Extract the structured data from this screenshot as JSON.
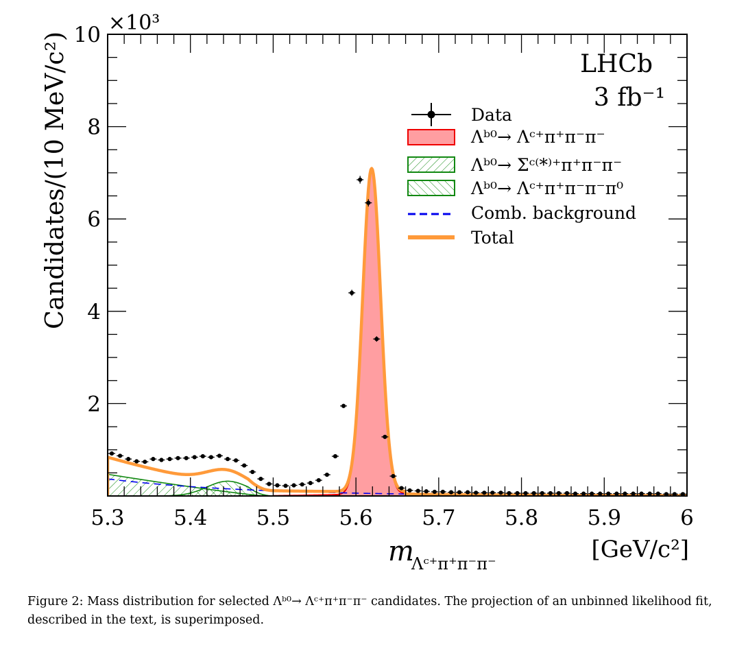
{
  "chart_data": {
    "type": "histogram-fit",
    "experiment_label": "LHCb",
    "lumi_label": "3 fb⁻¹",
    "xlabel": "m",
    "xlabel_sub": "Λᶜ⁺π⁺π⁻π⁻",
    "xunit": "[GeV/c²]",
    "ylabel": "Candidates/(10 MeV/c²)",
    "y_multiplier": "×10³",
    "xlim": [
      5.3,
      6.0
    ],
    "ylim": [
      0,
      10
    ],
    "x_ticks": [
      "5.3",
      "5.4",
      "5.5",
      "5.6",
      "5.7",
      "5.8",
      "5.9",
      "6"
    ],
    "y_ticks": [
      "2",
      "4",
      "6",
      "8",
      "10"
    ],
    "legend": {
      "data": "Data",
      "signal": "Λᵇ⁰→ Λᶜ⁺π⁺π⁻π⁻",
      "sigma_c": "Λᵇ⁰→ Σᶜ⁽*⁾⁺π⁺π⁻π⁻",
      "pi0": "Λᵇ⁰→ Λᶜ⁺π⁺π⁻π⁻π⁰",
      "comb": "Comb. background",
      "total": "Total"
    },
    "data_points": {
      "x": [
        5.305,
        5.315,
        5.325,
        5.335,
        5.345,
        5.355,
        5.365,
        5.375,
        5.385,
        5.395,
        5.405,
        5.415,
        5.425,
        5.435,
        5.445,
        5.455,
        5.465,
        5.475,
        5.485,
        5.495,
        5.505,
        5.515,
        5.525,
        5.535,
        5.545,
        5.555,
        5.565,
        5.575,
        5.585,
        5.595,
        5.605,
        5.615,
        5.625,
        5.635,
        5.645,
        5.655,
        5.665,
        5.675,
        5.685,
        5.695,
        5.705,
        5.715,
        5.725,
        5.735,
        5.745,
        5.755,
        5.765,
        5.775,
        5.785,
        5.795,
        5.805,
        5.815,
        5.825,
        5.835,
        5.845,
        5.855,
        5.865,
        5.875,
        5.885,
        5.895,
        5.905,
        5.915,
        5.925,
        5.935,
        5.945,
        5.955,
        5.965,
        5.975,
        5.985,
        5.995
      ],
      "y": [
        0.92,
        0.87,
        0.8,
        0.75,
        0.74,
        0.8,
        0.78,
        0.8,
        0.82,
        0.82,
        0.84,
        0.86,
        0.84,
        0.87,
        0.8,
        0.77,
        0.66,
        0.52,
        0.37,
        0.26,
        0.23,
        0.22,
        0.23,
        0.25,
        0.28,
        0.34,
        0.46,
        0.86,
        1.95,
        4.4,
        6.85,
        6.35,
        3.4,
        1.28,
        0.43,
        0.17,
        0.12,
        0.11,
        0.1,
        0.09,
        0.09,
        0.08,
        0.08,
        0.08,
        0.07,
        0.07,
        0.07,
        0.07,
        0.06,
        0.06,
        0.06,
        0.06,
        0.06,
        0.06,
        0.06,
        0.06,
        0.05,
        0.05,
        0.05,
        0.05,
        0.05,
        0.05,
        0.05,
        0.05,
        0.05,
        0.05,
        0.05,
        0.04,
        0.04,
        0.04
      ]
    },
    "components": {
      "signal": {
        "type": "gaussian",
        "mean": 5.619,
        "sigma": 0.0108,
        "peak": 7.0,
        "baseline_start": 5.49
      },
      "sigma_c": {
        "start": 0.47,
        "end_x": 5.49
      },
      "pi0": {
        "mean": 5.445,
        "sigma": 0.025,
        "peak": 0.32
      },
      "comb": {
        "y_at_5.3": 0.37,
        "slope": -6.0
      }
    },
    "colors": {
      "signal_fill": "#ff9ea1",
      "signal_line": "#ee0000",
      "partial_reco": "#118811",
      "comb": "#0000ee",
      "total": "#ff9a3a",
      "data": "#000000"
    }
  },
  "caption": {
    "label": "Figure 2:",
    "text": "Mass distribution for selected Λᵇ⁰→ Λᶜ⁺π⁺π⁻π⁻ candidates. The projection of an unbinned likelihood fit, described in the text, is superimposed."
  }
}
